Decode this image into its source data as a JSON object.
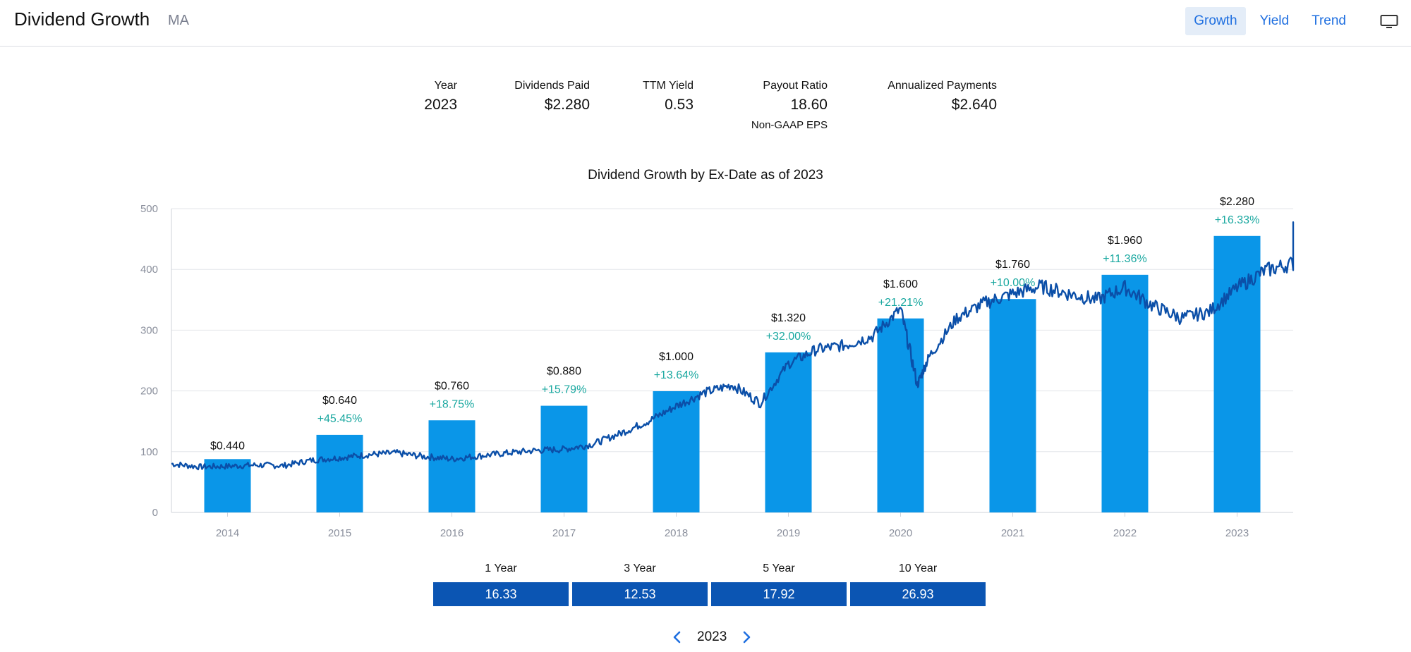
{
  "header": {
    "title": "Dividend Growth",
    "ticker": "MA",
    "tabs": [
      {
        "label": "Growth",
        "active": true
      },
      {
        "label": "Yield",
        "active": false
      },
      {
        "label": "Trend",
        "active": false
      }
    ],
    "screen_icon": "monitor-icon"
  },
  "stats": {
    "year": {
      "label": "Year",
      "value": "2023"
    },
    "dividends_paid": {
      "label": "Dividends Paid",
      "value": "$2.280"
    },
    "ttm_yield": {
      "label": "TTM Yield",
      "value": "0.53"
    },
    "payout_ratio": {
      "label": "Payout Ratio",
      "value": "18.60",
      "sub": "Non-GAAP EPS"
    },
    "annualized": {
      "label": "Annualized Payments",
      "value": "$2.640"
    }
  },
  "chart_data": {
    "type": "bar",
    "title": "Dividend Growth by Ex-Date as of 2023",
    "categories": [
      "2014",
      "2015",
      "2016",
      "2017",
      "2018",
      "2019",
      "2020",
      "2021",
      "2022",
      "2023"
    ],
    "dividends": [
      0.44,
      0.64,
      0.76,
      0.88,
      1.0,
      1.32,
      1.6,
      1.76,
      1.96,
      2.28
    ],
    "value_labels": [
      "$0.440",
      "$0.640",
      "$0.760",
      "$0.880",
      "$1.000",
      "$1.320",
      "$1.600",
      "$1.760",
      "$1.960",
      "$2.280"
    ],
    "growth_labels": [
      "",
      "+45.45%",
      "+18.75%",
      "+15.79%",
      "+13.64%",
      "+32.00%",
      "+21.21%",
      "+10.00%",
      "+11.36%",
      "+16.33%"
    ],
    "ylim": [
      0,
      500
    ],
    "yticks": [
      "0",
      "100",
      "200",
      "300",
      "400",
      "500"
    ],
    "grid": true,
    "bar_color": "#0a96e8",
    "growth_color": "#1aa8a0",
    "price_line": {
      "color": "#0b4fa8",
      "x": [
        2013.5,
        2013.75,
        2014.0,
        2014.25,
        2014.5,
        2014.75,
        2015.0,
        2015.25,
        2015.5,
        2015.75,
        2016.0,
        2016.25,
        2016.5,
        2016.75,
        2017.0,
        2017.25,
        2017.5,
        2017.75,
        2018.0,
        2018.25,
        2018.5,
        2018.75,
        2019.0,
        2019.25,
        2019.5,
        2019.75,
        2020.0,
        2020.15,
        2020.25,
        2020.5,
        2020.75,
        2021.0,
        2021.25,
        2021.5,
        2021.75,
        2022.0,
        2022.25,
        2022.5,
        2022.75,
        2023.0,
        2023.25,
        2023.5,
        2023.65
      ],
      "y": [
        80,
        75,
        76,
        78,
        77,
        86,
        90,
        95,
        98,
        92,
        88,
        93,
        98,
        102,
        104,
        112,
        130,
        150,
        175,
        197,
        210,
        180,
        245,
        268,
        275,
        290,
        335,
        210,
        255,
        320,
        345,
        360,
        372,
        360,
        350,
        370,
        340,
        320,
        330,
        370,
        398,
        410,
        470
      ]
    }
  },
  "growth_rates": [
    {
      "label": "1 Year",
      "value": "16.33"
    },
    {
      "label": "3 Year",
      "value": "12.53"
    },
    {
      "label": "5 Year",
      "value": "17.92"
    },
    {
      "label": "10 Year",
      "value": "26.93"
    }
  ],
  "pager": {
    "year": "2023"
  }
}
